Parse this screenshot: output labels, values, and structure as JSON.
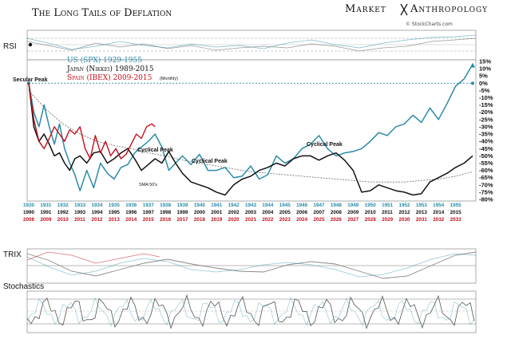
{
  "header": {
    "title": "The Long Tails of Deflation",
    "brand_left": "Market",
    "brand_right": "Anthropology",
    "source": "© StockCharts.com"
  },
  "panels": {
    "rsi": "RSI",
    "trix": "TRIX",
    "stochastics": "Stochastics"
  },
  "colors": {
    "us": "#2a8aa8",
    "japan": "#111111",
    "spain": "#c0101a",
    "sma": "#555555",
    "grid": "#999999"
  },
  "chart_data": {
    "type": "line",
    "title": "The Long Tails of Deflation",
    "ylabel": "",
    "ylim": [
      -80,
      15
    ],
    "y_ticks": [
      "15%",
      "10%",
      "5%",
      "0%",
      "-5%",
      "-10%",
      "-15%",
      "-20%",
      "-25%",
      "-30%",
      "-35%",
      "-40%",
      "-45%",
      "-50%",
      "-55%",
      "-60%",
      "-65%",
      "-70%",
      "-75%",
      "-80%"
    ],
    "x_axis_us": [
      "1930",
      "1931",
      "1932",
      "1933",
      "1934",
      "1935",
      "1936",
      "1937",
      "1938",
      "1939",
      "1940",
      "1941",
      "1942",
      "1943",
      "1944",
      "1945",
      "1946",
      "1947",
      "1948",
      "1949",
      "1950",
      "1951",
      "1952",
      "1953",
      "1954",
      "1955"
    ],
    "x_axis_japan": [
      "1990",
      "1991",
      "1992",
      "1993",
      "1994",
      "1995",
      "1996",
      "1997",
      "1998",
      "1999",
      "2000",
      "2001",
      "2002",
      "2003",
      "2004",
      "2005",
      "2006",
      "2007",
      "2008",
      "2009",
      "2010",
      "2011",
      "2012",
      "2013",
      "2014",
      "2015"
    ],
    "x_axis_spain": [
      "2008",
      "2009",
      "2010",
      "2011",
      "2012",
      "2013",
      "2014",
      "2015",
      "2016",
      "2017",
      "2018",
      "2019",
      "2020",
      "2021",
      "2022",
      "2023",
      "2024",
      "2025",
      "2026",
      "2027",
      "2028",
      "2029",
      "2030",
      "2031",
      "2032",
      "2033"
    ],
    "legend": {
      "us": "US (SPX) 1929-1955",
      "japan": "Japan (Nikkei) 1989-2015",
      "spain": "Spain (IBEX) 2009-2015",
      "spain_note": "(Monthly)"
    },
    "annotations": {
      "secular_peak": "Secular Peak",
      "cyclical_peak": "Cyclical Peak",
      "sma": "SMA 50's"
    },
    "series": [
      {
        "name": "US (SPX) 1929-1955",
        "x": [
          0,
          0.3,
          0.6,
          0.9,
          1.2,
          1.5,
          1.8,
          2.1,
          2.4,
          2.7,
          3.0,
          3.4,
          3.8,
          4.2,
          4.6,
          5.0,
          5.4,
          5.8,
          6.2,
          6.6,
          7.0,
          7.4,
          7.8,
          8.2,
          8.6,
          9.0,
          9.5,
          10.0,
          10.5,
          11.0,
          11.5,
          12.0,
          12.5,
          13.0,
          13.5,
          14.0,
          14.5,
          15.0,
          15.5,
          16.0,
          16.5,
          17.0,
          17.5,
          18.0,
          18.5,
          19.0,
          19.5,
          20.0,
          20.5,
          21.0,
          21.5,
          22.0,
          22.5,
          23.0,
          23.5,
          24.0,
          24.5,
          25.0,
          25.5,
          26.0
        ],
        "values": [
          0,
          -20,
          -30,
          -15,
          -30,
          -42,
          -28,
          -45,
          -55,
          -63,
          -74,
          -60,
          -72,
          -55,
          -62,
          -66,
          -58,
          -56,
          -48,
          -44,
          -40,
          -35,
          -44,
          -60,
          -55,
          -50,
          -56,
          -49,
          -60,
          -60,
          -58,
          -65,
          -64,
          -57,
          -66,
          -63,
          -50,
          -55,
          -52,
          -45,
          -42,
          -36,
          -45,
          -50,
          -48,
          -47,
          -45,
          -40,
          -34,
          -36,
          -30,
          -28,
          -22,
          -27,
          -17,
          -25,
          -14,
          -2,
          3,
          13
        ]
      },
      {
        "name": "Japan (Nikkei) 1989-2015",
        "x": [
          0,
          0.3,
          0.6,
          0.9,
          1.2,
          1.5,
          1.8,
          2.1,
          2.4,
          2.7,
          3.0,
          3.4,
          3.8,
          4.2,
          4.6,
          5.0,
          5.4,
          5.8,
          6.2,
          6.6,
          7.0,
          7.4,
          7.8,
          8.2,
          8.6,
          9.0,
          9.5,
          10.0,
          10.5,
          11.0,
          11.5,
          12.0,
          12.5,
          13.0,
          13.5,
          14.0,
          14.5,
          15.0,
          15.5,
          16.0,
          16.5,
          17.0,
          17.5,
          18.0,
          18.5,
          19.0,
          19.5,
          20.0,
          20.5,
          21.0,
          21.5,
          22.0,
          22.5,
          23.0,
          23.5,
          24.0,
          24.5,
          25.0,
          25.5,
          26.0
        ],
        "values": [
          0,
          -30,
          -40,
          -35,
          -42,
          -50,
          -48,
          -55,
          -60,
          -52,
          -50,
          -55,
          -48,
          -47,
          -55,
          -52,
          -48,
          -45,
          -52,
          -60,
          -56,
          -52,
          -55,
          -47,
          -55,
          -62,
          -68,
          -70,
          -72,
          -75,
          -77,
          -70,
          -66,
          -64,
          -60,
          -58,
          -55,
          -57,
          -52,
          -50,
          -50,
          -53,
          -50,
          -48,
          -53,
          -60,
          -75,
          -74,
          -70,
          -72,
          -74,
          -75,
          -77,
          -76,
          -68,
          -65,
          -62,
          -58,
          -55,
          -50
        ]
      },
      {
        "name": "Spain (IBEX) 2009-2015",
        "x": [
          0,
          0.3,
          0.6,
          0.9,
          1.2,
          1.5,
          1.8,
          2.1,
          2.4,
          2.7,
          3.0,
          3.3,
          3.6,
          3.9,
          4.2,
          4.5,
          4.8,
          5.1,
          5.4,
          5.7,
          6.0,
          6.3,
          6.6,
          6.9,
          7.2,
          7.4
        ],
        "values": [
          0,
          -25,
          -40,
          -45,
          -38,
          -30,
          -35,
          -40,
          -32,
          -35,
          -30,
          -45,
          -52,
          -36,
          -48,
          -40,
          -50,
          -45,
          -52,
          -49,
          -42,
          -35,
          -38,
          -30,
          -28,
          -30
        ]
      },
      {
        "name": "SMA 50's",
        "x": [
          0,
          1,
          2,
          3,
          4,
          5,
          6,
          7,
          8,
          9,
          10,
          11,
          12,
          13,
          14,
          15,
          16,
          17,
          18,
          19,
          20,
          21,
          22,
          23,
          24,
          25,
          26
        ],
        "values": [
          -5,
          -18,
          -28,
          -35,
          -40,
          -43,
          -45,
          -48,
          -50,
          -53,
          -55,
          -57,
          -59,
          -61,
          -62,
          -63,
          -64,
          -65,
          -66,
          -67,
          -68,
          -68,
          -68,
          -67,
          -66,
          -64,
          -61
        ]
      }
    ]
  }
}
